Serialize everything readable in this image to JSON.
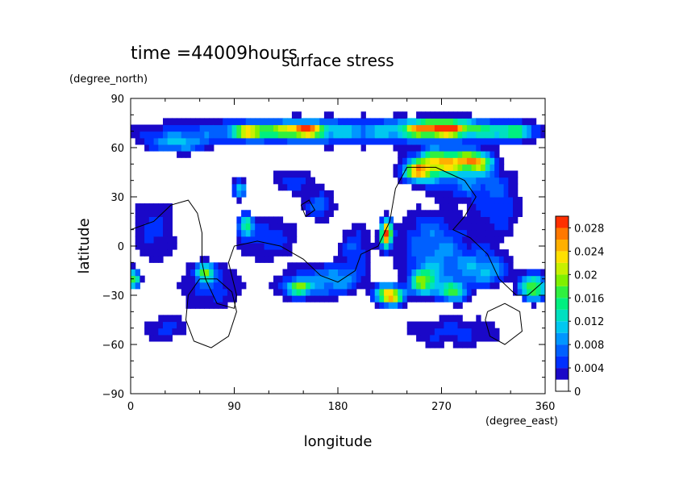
{
  "chart_data": {
    "type": "heatmap",
    "title": "surface stress",
    "subtitle": "time =44009hours",
    "xlabel": "longitude",
    "ylabel": "latitude",
    "x_units": "(degree_east)",
    "y_units": "(degree_north)",
    "xlim": [
      0,
      360
    ],
    "ylim": [
      -90,
      90
    ],
    "x_ticks": [
      0,
      90,
      180,
      270,
      360
    ],
    "y_ticks": [
      90,
      60,
      30,
      0,
      -30,
      -60,
      -90
    ],
    "x_tick_labels": [
      "0",
      "90",
      "180",
      "270",
      "360"
    ],
    "y_tick_labels": [
      "90",
      "60",
      "30",
      "0",
      "−30",
      "−60",
      "−90"
    ],
    "colorbar": {
      "ticks": [
        0,
        0.004,
        0.008,
        0.012,
        0.016,
        0.02,
        0.024,
        0.028
      ],
      "tick_labels": [
        "0",
        "0.004",
        "0.008",
        "0.012",
        "0.016",
        "0.02",
        "0.024",
        "0.028"
      ],
      "max": 0.03,
      "colors": [
        "#ffffff",
        "#1a08c8",
        "#0030ff",
        "#0060ff",
        "#0096ff",
        "#00c8f0",
        "#00e0c0",
        "#00f080",
        "#30f040",
        "#80f000",
        "#c8f000",
        "#ffe000",
        "#ffb000",
        "#ff7800",
        "#ff3000"
      ]
    },
    "field": {
      "description_units": "surface stress",
      "background_level": 0.0,
      "blobs": [
        {
          "lon": 180,
          "lat": 70,
          "rlon": 180,
          "rlat": 9,
          "v": 0.011
        },
        {
          "lon": 270,
          "lat": 72,
          "rlon": 30,
          "rlat": 5,
          "v": 0.024
        },
        {
          "lon": 148,
          "lat": 71,
          "rlon": 20,
          "rlat": 4,
          "v": 0.02
        },
        {
          "lon": 105,
          "lat": 70,
          "rlon": 15,
          "rlat": 4,
          "v": 0.017
        },
        {
          "lon": 330,
          "lat": 70,
          "rlon": 20,
          "rlat": 5,
          "v": 0.012
        },
        {
          "lon": 40,
          "lat": 62,
          "rlon": 25,
          "rlat": 6,
          "v": 0.009
        },
        {
          "lon": 270,
          "lat": 52,
          "rlon": 25,
          "rlat": 7,
          "v": 0.021
        },
        {
          "lon": 300,
          "lat": 52,
          "rlon": 15,
          "rlat": 6,
          "v": 0.018
        },
        {
          "lon": 250,
          "lat": 45,
          "rlon": 15,
          "rlat": 6,
          "v": 0.018
        },
        {
          "lon": 290,
          "lat": 40,
          "rlon": 40,
          "rlat": 12,
          "v": 0.008
        },
        {
          "lon": 320,
          "lat": 20,
          "rlon": 25,
          "rlat": 20,
          "v": 0.006
        },
        {
          "lon": 260,
          "lat": 10,
          "rlon": 30,
          "rlat": 15,
          "v": 0.007
        },
        {
          "lon": 222,
          "lat": 8,
          "rlon": 5,
          "rlat": 8,
          "v": 0.029
        },
        {
          "lon": 270,
          "lat": -10,
          "rlon": 40,
          "rlat": 15,
          "v": 0.008
        },
        {
          "lon": 255,
          "lat": -22,
          "rlon": 12,
          "rlat": 8,
          "v": 0.017
        },
        {
          "lon": 225,
          "lat": -30,
          "rlon": 12,
          "rlat": 6,
          "v": 0.026
        },
        {
          "lon": 280,
          "lat": -28,
          "rlon": 12,
          "rlat": 6,
          "v": 0.016
        },
        {
          "lon": 350,
          "lat": -25,
          "rlon": 12,
          "rlat": 8,
          "v": 0.021
        },
        {
          "lon": 310,
          "lat": -15,
          "rlon": 20,
          "rlat": 10,
          "v": 0.009
        },
        {
          "lon": 280,
          "lat": -52,
          "rlon": 55,
          "rlat": 12,
          "v": 0.006
        },
        {
          "lon": 30,
          "lat": -50,
          "rlon": 25,
          "rlat": 10,
          "v": 0.006
        },
        {
          "lon": 2,
          "lat": -20,
          "rlon": 6,
          "rlat": 6,
          "v": 0.017
        },
        {
          "lon": 20,
          "lat": 10,
          "rlon": 25,
          "rlat": 25,
          "v": 0.006
        },
        {
          "lon": 70,
          "lat": -25,
          "rlon": 30,
          "rlat": 15,
          "v": 0.007
        },
        {
          "lon": 65,
          "lat": -15,
          "rlon": 8,
          "rlat": 5,
          "v": 0.016
        },
        {
          "lon": 150,
          "lat": -25,
          "rlon": 30,
          "rlat": 12,
          "v": 0.007
        },
        {
          "lon": 145,
          "lat": -25,
          "rlon": 8,
          "rlat": 4,
          "v": 0.016
        },
        {
          "lon": 120,
          "lat": 5,
          "rlon": 30,
          "rlat": 15,
          "v": 0.007
        },
        {
          "lon": 100,
          "lat": 13,
          "rlon": 6,
          "rlat": 6,
          "v": 0.016
        },
        {
          "lon": 95,
          "lat": 35,
          "rlon": 6,
          "rlat": 6,
          "v": 0.014
        },
        {
          "lon": 140,
          "lat": 40,
          "rlon": 20,
          "rlat": 8,
          "v": 0.007
        },
        {
          "lon": 165,
          "lat": 25,
          "rlon": 15,
          "rlat": 10,
          "v": 0.008
        },
        {
          "lon": 195,
          "lat": 0,
          "rlon": 15,
          "rlat": 15,
          "v": 0.007
        },
        {
          "lon": 180,
          "lat": -20,
          "rlon": 25,
          "rlat": 10,
          "v": 0.008
        }
      ],
      "threshold_white": 0.0035
    },
    "grid": false,
    "legend": "colorbar-right"
  }
}
